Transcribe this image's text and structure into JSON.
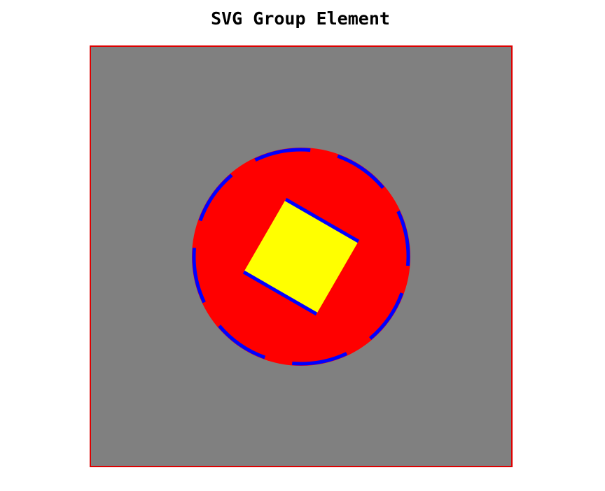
{
  "title": "SVG Group Element",
  "colors": {
    "canvas_fill": "#808080",
    "canvas_border": "#dd0000",
    "circle_fill": "#ff0000",
    "square_fill": "#ffff00",
    "accent_stroke": "#0000ff"
  }
}
